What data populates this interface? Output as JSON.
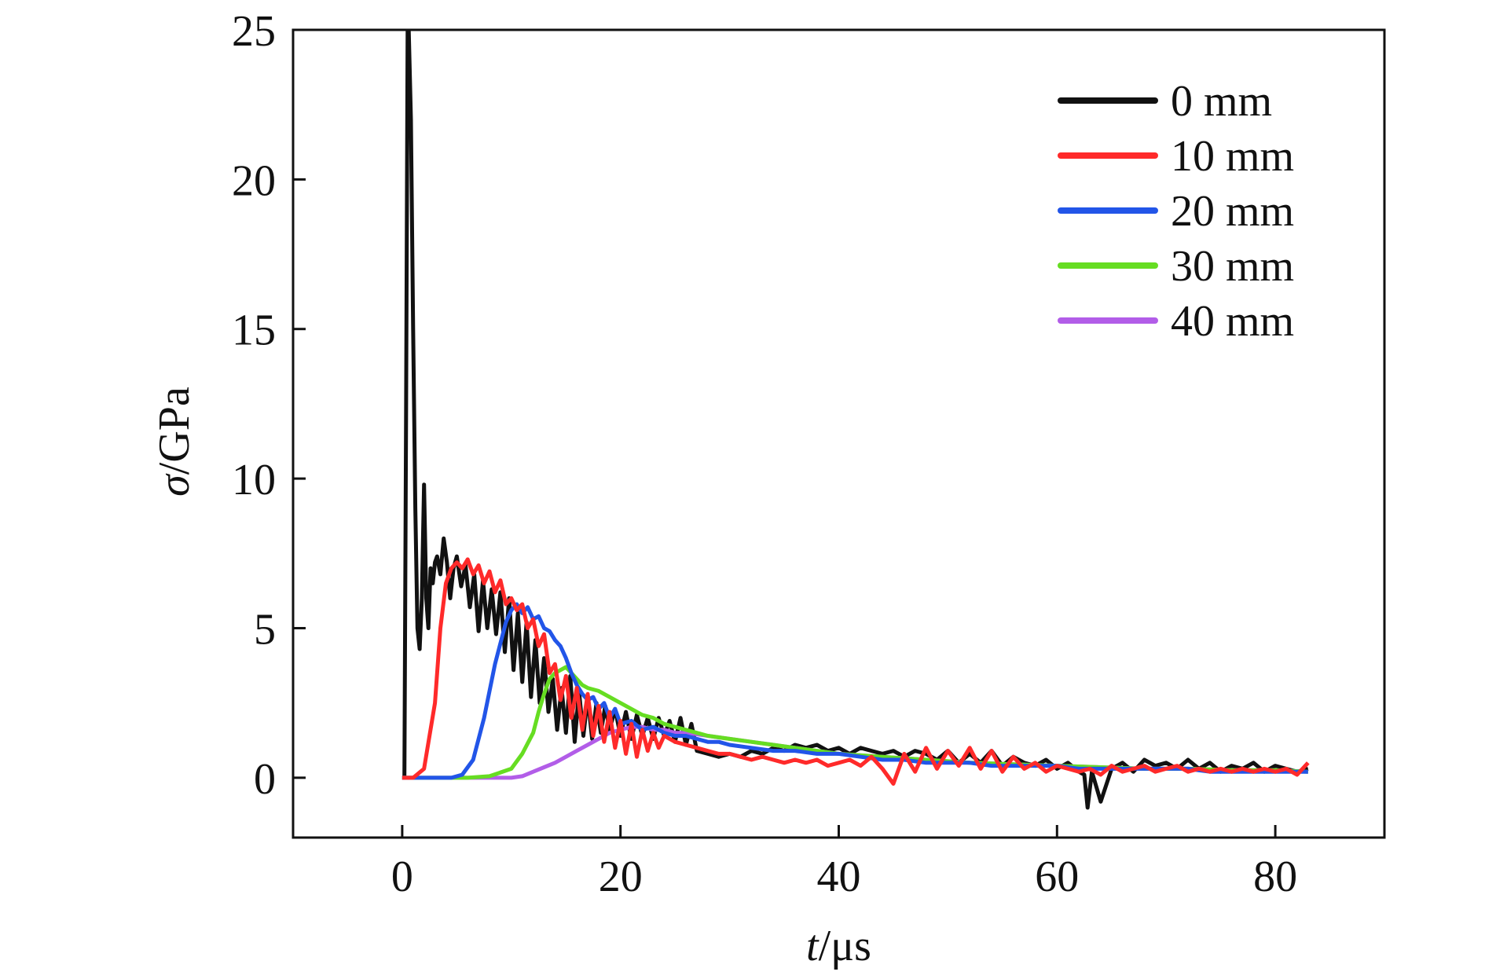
{
  "chart_data": {
    "type": "line",
    "xlabel_italic": "t",
    "xlabel_unit": "/μs",
    "ylabel_italic": "σ",
    "ylabel_unit": "/GPa",
    "xlim": [
      -10,
      90
    ],
    "ylim": [
      -2,
      25
    ],
    "xticks": [
      0,
      20,
      40,
      60,
      80
    ],
    "yticks": [
      0,
      5,
      10,
      15,
      20,
      25
    ],
    "xtick_labels": [
      "0",
      "20",
      "40",
      "60",
      "80"
    ],
    "ytick_labels": [
      "0",
      "5",
      "10",
      "15",
      "20",
      "25"
    ],
    "grid": false,
    "legend_position": "top-right",
    "series": [
      {
        "name": "0 mm",
        "color": "#111111",
        "x": [
          0,
          0.2,
          0.35,
          0.5,
          0.6,
          0.8,
          1.0,
          1.2,
          1.4,
          1.6,
          1.8,
          2.0,
          2.2,
          2.4,
          2.6,
          2.8,
          3.0,
          3.2,
          3.5,
          3.8,
          4.1,
          4.4,
          4.7,
          5.0,
          5.4,
          5.8,
          6.2,
          6.6,
          7.0,
          7.4,
          7.8,
          8.2,
          8.6,
          9.0,
          9.4,
          9.8,
          10.2,
          10.6,
          11.0,
          11.4,
          11.8,
          12.2,
          12.6,
          13.0,
          13.4,
          13.8,
          14.2,
          14.6,
          15.0,
          15.4,
          15.8,
          16.2,
          16.6,
          17.0,
          17.4,
          17.8,
          18.2,
          18.6,
          19.0,
          19.5,
          20.0,
          20.5,
          21.0,
          21.5,
          22.0,
          22.5,
          23.0,
          23.5,
          24.0,
          24.5,
          25.0,
          25.5,
          26.0,
          26.5,
          27.0,
          28,
          29,
          30,
          31,
          32,
          33,
          34,
          35,
          36,
          37,
          38,
          39,
          40,
          41,
          42,
          43,
          44,
          45,
          46,
          47,
          48,
          49,
          50,
          51,
          52,
          53,
          54,
          55,
          56,
          57,
          58,
          59,
          60,
          61,
          62,
          62.5,
          62.8,
          63.2,
          64,
          65,
          66,
          67,
          68,
          69,
          70,
          71,
          72,
          73,
          74,
          75,
          76,
          77,
          78,
          79,
          80,
          81,
          82,
          83
        ],
        "y": [
          0,
          0,
          12,
          25,
          25,
          22,
          15,
          9,
          5,
          4.3,
          6,
          9.8,
          6,
          5,
          7,
          6.5,
          7.2,
          7.4,
          6.8,
          8.0,
          7.2,
          6.0,
          7.0,
          7.4,
          6.4,
          7.1,
          5.7,
          6.8,
          4.9,
          6.6,
          5.0,
          6.3,
          4.8,
          6.2,
          4.2,
          6.0,
          3.6,
          5.5,
          3.2,
          5.2,
          2.7,
          4.6,
          2.5,
          4.0,
          2.2,
          3.3,
          1.6,
          3.0,
          1.5,
          3.4,
          1.2,
          2.9,
          1.4,
          2.7,
          1.3,
          2.5,
          1.5,
          2.4,
          1.6,
          2.3,
          1.4,
          2.2,
          1.3,
          2.1,
          1.4,
          2.0,
          1.3,
          2.0,
          1.4,
          1.9,
          1.2,
          2.0,
          1.1,
          1.8,
          0.9,
          0.8,
          0.7,
          0.8,
          0.7,
          0.9,
          0.8,
          1.0,
          0.9,
          1.1,
          1.0,
          1.1,
          0.9,
          1.0,
          0.8,
          1.0,
          0.9,
          0.8,
          0.9,
          0.7,
          0.9,
          0.8,
          0.6,
          0.9,
          0.5,
          0.8,
          0.5,
          0.9,
          0.4,
          0.7,
          0.5,
          0.4,
          0.6,
          0.3,
          0.5,
          0.2,
          0.1,
          -1.0,
          0.2,
          -0.8,
          0.3,
          0.5,
          0.2,
          0.6,
          0.4,
          0.5,
          0.3,
          0.6,
          0.3,
          0.5,
          0.2,
          0.4,
          0.3,
          0.5,
          0.2,
          0.4,
          0.3,
          0.2,
          0.3
        ]
      },
      {
        "name": "10 mm",
        "color": "#ff2a2a",
        "x": [
          0,
          1,
          2,
          3,
          3.5,
          4,
          4.5,
          5,
          5.5,
          6,
          6.5,
          7,
          7.5,
          8,
          8.5,
          9,
          9.5,
          10,
          10.5,
          11,
          11.5,
          12,
          12.5,
          13,
          13.5,
          14,
          14.5,
          15,
          15.5,
          16,
          16.5,
          17,
          17.5,
          18,
          18.5,
          19,
          19.5,
          20,
          20.5,
          21,
          21.5,
          22,
          22.5,
          23,
          23.5,
          24,
          25,
          26,
          27,
          28,
          29,
          30,
          31,
          32,
          33,
          34,
          35,
          36,
          37,
          38,
          39,
          40,
          41,
          42,
          43,
          44,
          45,
          46,
          47,
          48,
          49,
          50,
          51,
          52,
          53,
          54,
          55,
          56,
          57,
          58,
          59,
          60,
          61,
          62,
          63,
          64,
          65,
          66,
          67,
          68,
          69,
          70,
          71,
          72,
          73,
          74,
          75,
          76,
          77,
          78,
          79,
          80,
          81,
          82,
          83
        ],
        "y": [
          0,
          0,
          0.3,
          2.5,
          5.0,
          6.5,
          7.0,
          7.2,
          7.0,
          7.3,
          6.8,
          7.1,
          6.5,
          6.9,
          6.2,
          6.6,
          5.8,
          6.0,
          5.6,
          5.8,
          5.0,
          5.3,
          4.4,
          4.8,
          3.5,
          3.8,
          2.6,
          3.4,
          2.0,
          3.0,
          1.6,
          2.8,
          1.4,
          2.4,
          1.2,
          2.2,
          1.0,
          1.9,
          0.8,
          1.8,
          0.7,
          1.6,
          0.9,
          1.5,
          1.0,
          1.4,
          1.2,
          1.1,
          1.0,
          0.9,
          0.8,
          0.8,
          0.7,
          0.6,
          0.7,
          0.6,
          0.5,
          0.6,
          0.5,
          0.6,
          0.4,
          0.5,
          0.6,
          0.4,
          0.7,
          0.3,
          -0.2,
          0.8,
          0.2,
          1.0,
          0.3,
          0.9,
          0.4,
          1.0,
          0.3,
          0.9,
          0.2,
          0.7,
          0.3,
          0.5,
          0.2,
          0.4,
          0.3,
          0.2,
          0.3,
          0.1,
          0.4,
          0.2,
          0.3,
          0.4,
          0.2,
          0.3,
          0.4,
          0.2,
          0.3,
          0.2,
          0.3,
          0.2,
          0.3,
          0.2,
          0.3,
          0.2,
          0.3,
          0.1,
          0.5
        ]
      },
      {
        "name": "20 mm",
        "color": "#2255e8",
        "x": [
          0,
          3,
          4.5,
          5.5,
          6.5,
          7.5,
          8.5,
          9.5,
          10,
          10.5,
          11,
          11.5,
          12,
          12.5,
          13,
          13.5,
          14,
          14.5,
          15,
          15.5,
          16,
          16.5,
          17,
          17.5,
          18,
          18.5,
          19,
          19.5,
          20,
          21,
          22,
          23,
          24,
          25,
          26,
          27,
          28,
          29,
          30,
          32,
          34,
          36,
          38,
          40,
          42,
          44,
          46,
          48,
          50,
          52,
          54,
          56,
          58,
          60,
          62,
          64,
          66,
          68,
          70,
          72,
          74,
          76,
          78,
          80,
          82,
          83
        ],
        "y": [
          0,
          0,
          0,
          0.1,
          0.6,
          2.0,
          3.8,
          5.2,
          5.6,
          5.8,
          5.5,
          5.7,
          5.3,
          5.4,
          5.0,
          4.9,
          4.6,
          4.4,
          4.0,
          3.5,
          3.1,
          2.8,
          2.6,
          2.7,
          2.3,
          2.5,
          2.0,
          2.3,
          1.8,
          1.9,
          1.6,
          1.7,
          1.5,
          1.4,
          1.4,
          1.3,
          1.2,
          1.2,
          1.1,
          1.0,
          0.9,
          0.9,
          0.8,
          0.8,
          0.7,
          0.6,
          0.6,
          0.5,
          0.5,
          0.5,
          0.4,
          0.4,
          0.4,
          0.4,
          0.3,
          0.3,
          0.3,
          0.3,
          0.3,
          0.3,
          0.2,
          0.2,
          0.2,
          0.2,
          0.2,
          0.2
        ]
      },
      {
        "name": "30 mm",
        "color": "#66dd22",
        "x": [
          0,
          6,
          8,
          10,
          11,
          12,
          12.5,
          13,
          13.5,
          14,
          14.5,
          15,
          15.5,
          16,
          16.5,
          17,
          18,
          19,
          20,
          21,
          22,
          23,
          24,
          25,
          26,
          27,
          28,
          30,
          32,
          34,
          36,
          38,
          40,
          44,
          48,
          52,
          56,
          60,
          64,
          68,
          72,
          76,
          80,
          83
        ],
        "y": [
          0,
          0,
          0.05,
          0.3,
          0.8,
          1.5,
          2.2,
          2.8,
          3.3,
          3.5,
          3.6,
          3.7,
          3.5,
          3.3,
          3.1,
          3.0,
          2.9,
          2.7,
          2.5,
          2.3,
          2.1,
          2.0,
          1.8,
          1.7,
          1.6,
          1.5,
          1.4,
          1.3,
          1.2,
          1.1,
          1.0,
          0.9,
          0.8,
          0.7,
          0.6,
          0.5,
          0.45,
          0.4,
          0.35,
          0.3,
          0.3,
          0.25,
          0.25,
          0.2
        ]
      },
      {
        "name": "40 mm",
        "color": "#b25de8",
        "x": [
          0,
          10,
          11,
          12,
          13,
          14,
          15,
          16,
          17,
          18,
          19,
          20,
          21,
          22,
          23,
          24,
          25,
          26,
          28,
          30,
          32,
          34,
          36,
          38,
          40,
          44,
          48,
          52,
          56,
          60,
          64,
          68,
          72,
          76,
          80,
          83
        ],
        "y": [
          0,
          0,
          0.05,
          0.2,
          0.35,
          0.5,
          0.7,
          0.9,
          1.1,
          1.3,
          1.5,
          1.6,
          1.7,
          1.7,
          1.6,
          1.6,
          1.5,
          1.5,
          1.4,
          1.3,
          1.2,
          1.1,
          1.0,
          0.9,
          0.8,
          0.7,
          0.6,
          0.5,
          0.45,
          0.4,
          0.35,
          0.3,
          0.3,
          0.25,
          0.25,
          0.2
        ]
      }
    ]
  }
}
